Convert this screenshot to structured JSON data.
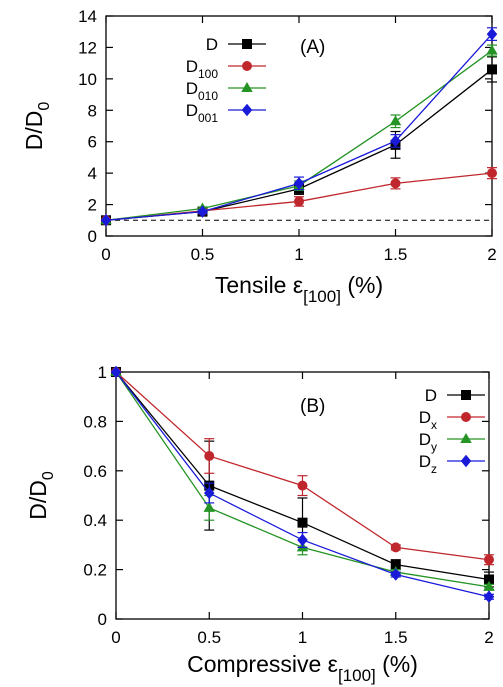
{
  "chart_data": [
    {
      "type": "line",
      "panel_label": "(A)",
      "xlabel": {
        "main": "Tensile ε",
        "sub": "[100]",
        "unit": "(%)"
      },
      "ylabel": {
        "main": "D/D",
        "sub": "0"
      },
      "xlim": [
        0,
        2
      ],
      "ylim": [
        0,
        14
      ],
      "xticks": [
        "0",
        "0.5",
        "1",
        "1.5",
        "2"
      ],
      "yticks": [
        "0",
        "2",
        "4",
        "6",
        "8",
        "10",
        "12",
        "14"
      ],
      "reference_line": {
        "y": 1,
        "style": "dashed"
      },
      "legend_position": "top-left",
      "x": [
        0,
        0.5,
        1,
        1.5,
        2
      ],
      "series": [
        {
          "name": "D",
          "name_sub": "",
          "color": "#000000",
          "marker": "square",
          "values": [
            1.0,
            1.55,
            3.0,
            5.8,
            10.6
          ],
          "errors": [
            0,
            0.1,
            0.35,
            0.85,
            0.8
          ]
        },
        {
          "name": "D",
          "name_sub": "100",
          "color": "#c0272d",
          "marker": "circle",
          "values": [
            1.0,
            1.6,
            2.2,
            3.35,
            4.0
          ],
          "errors": [
            0,
            0.05,
            0.3,
            0.35,
            0.35
          ]
        },
        {
          "name": "D",
          "name_sub": "010",
          "color": "#259425",
          "marker": "triangle",
          "values": [
            1.0,
            1.75,
            3.2,
            7.3,
            11.8
          ],
          "errors": [
            0,
            0.1,
            0.3,
            0.4,
            0.35
          ]
        },
        {
          "name": "D",
          "name_sub": "001",
          "color": "#1a1ad9",
          "marker": "diamond",
          "values": [
            1.0,
            1.55,
            3.35,
            6.05,
            12.85
          ],
          "errors": [
            0,
            0.1,
            0.4,
            0.4,
            0.4
          ]
        }
      ]
    },
    {
      "type": "line",
      "panel_label": "(B)",
      "xlabel": {
        "main": "Compressive ε",
        "sub": "[100]",
        "unit": "(%)"
      },
      "ylabel": {
        "main": "D/D",
        "sub": "0"
      },
      "xlim": [
        0,
        2
      ],
      "ylim": [
        0,
        1
      ],
      "xticks": [
        "0",
        "0.5",
        "1",
        "1.5",
        "2"
      ],
      "yticks": [
        "0",
        "0.2",
        "0.4",
        "0.6",
        "0.8",
        "1"
      ],
      "legend_position": "top-right",
      "x": [
        0,
        0.5,
        1,
        1.5,
        2
      ],
      "series": [
        {
          "name": "D",
          "name_sub": "",
          "color": "#000000",
          "marker": "square",
          "values": [
            1.0,
            0.54,
            0.39,
            0.22,
            0.16
          ],
          "errors": [
            0,
            0.18,
            0.1,
            0.02,
            0.03
          ]
        },
        {
          "name": "D",
          "name_sub": "x",
          "color": "#c0272d",
          "marker": "circle",
          "values": [
            1.0,
            0.66,
            0.54,
            0.29,
            0.24
          ],
          "errors": [
            0,
            0.07,
            0.04,
            0.01,
            0.02
          ]
        },
        {
          "name": "D",
          "name_sub": "y",
          "color": "#259425",
          "marker": "triangle",
          "values": [
            1.0,
            0.45,
            0.29,
            0.19,
            0.13
          ],
          "errors": [
            0,
            0.05,
            0.03,
            0.01,
            0.01
          ]
        },
        {
          "name": "D",
          "name_sub": "z",
          "color": "#1a1ad9",
          "marker": "diamond",
          "values": [
            1.0,
            0.51,
            0.32,
            0.18,
            0.09
          ],
          "errors": [
            0,
            0.04,
            0.03,
            0.01,
            0.01
          ]
        }
      ]
    }
  ]
}
